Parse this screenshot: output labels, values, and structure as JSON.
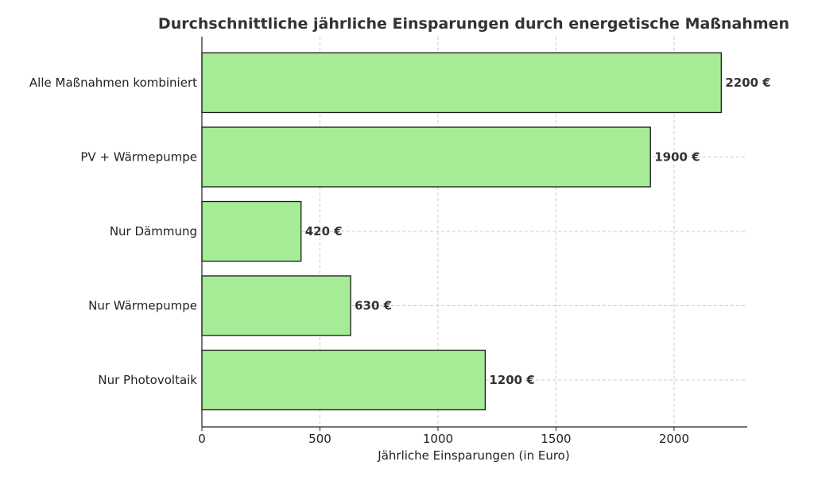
{
  "chart_data": {
    "type": "bar",
    "orientation": "horizontal",
    "title": "Durchschnittliche jährliche Einsparungen durch energetische Maßnahmen",
    "xlabel": "Jährliche Einsparungen (in Euro)",
    "ylabel": "",
    "categories": [
      "Alle Maßnahmen kombiniert",
      "PV + Wärmepumpe",
      "Nur Dämmung",
      "Nur Wärmepumpe",
      "Nur Photovoltaik"
    ],
    "values": [
      2200,
      1900,
      420,
      630,
      1200
    ],
    "data_labels": [
      "2200 €",
      "1900 €",
      "420 €",
      "630 €",
      "1200 €"
    ],
    "xlim": [
      0,
      2310
    ],
    "xticks": [
      0,
      500,
      1000,
      1500,
      2000
    ],
    "xtick_labels": [
      "0",
      "500",
      "1000",
      "1500",
      "2000"
    ],
    "grid": true,
    "legend": "none",
    "colors": {
      "bar_fill": "#a6eb96",
      "bar_edge": "#1a1a1a",
      "grid": "#cccccc",
      "text": "#222222"
    }
  }
}
